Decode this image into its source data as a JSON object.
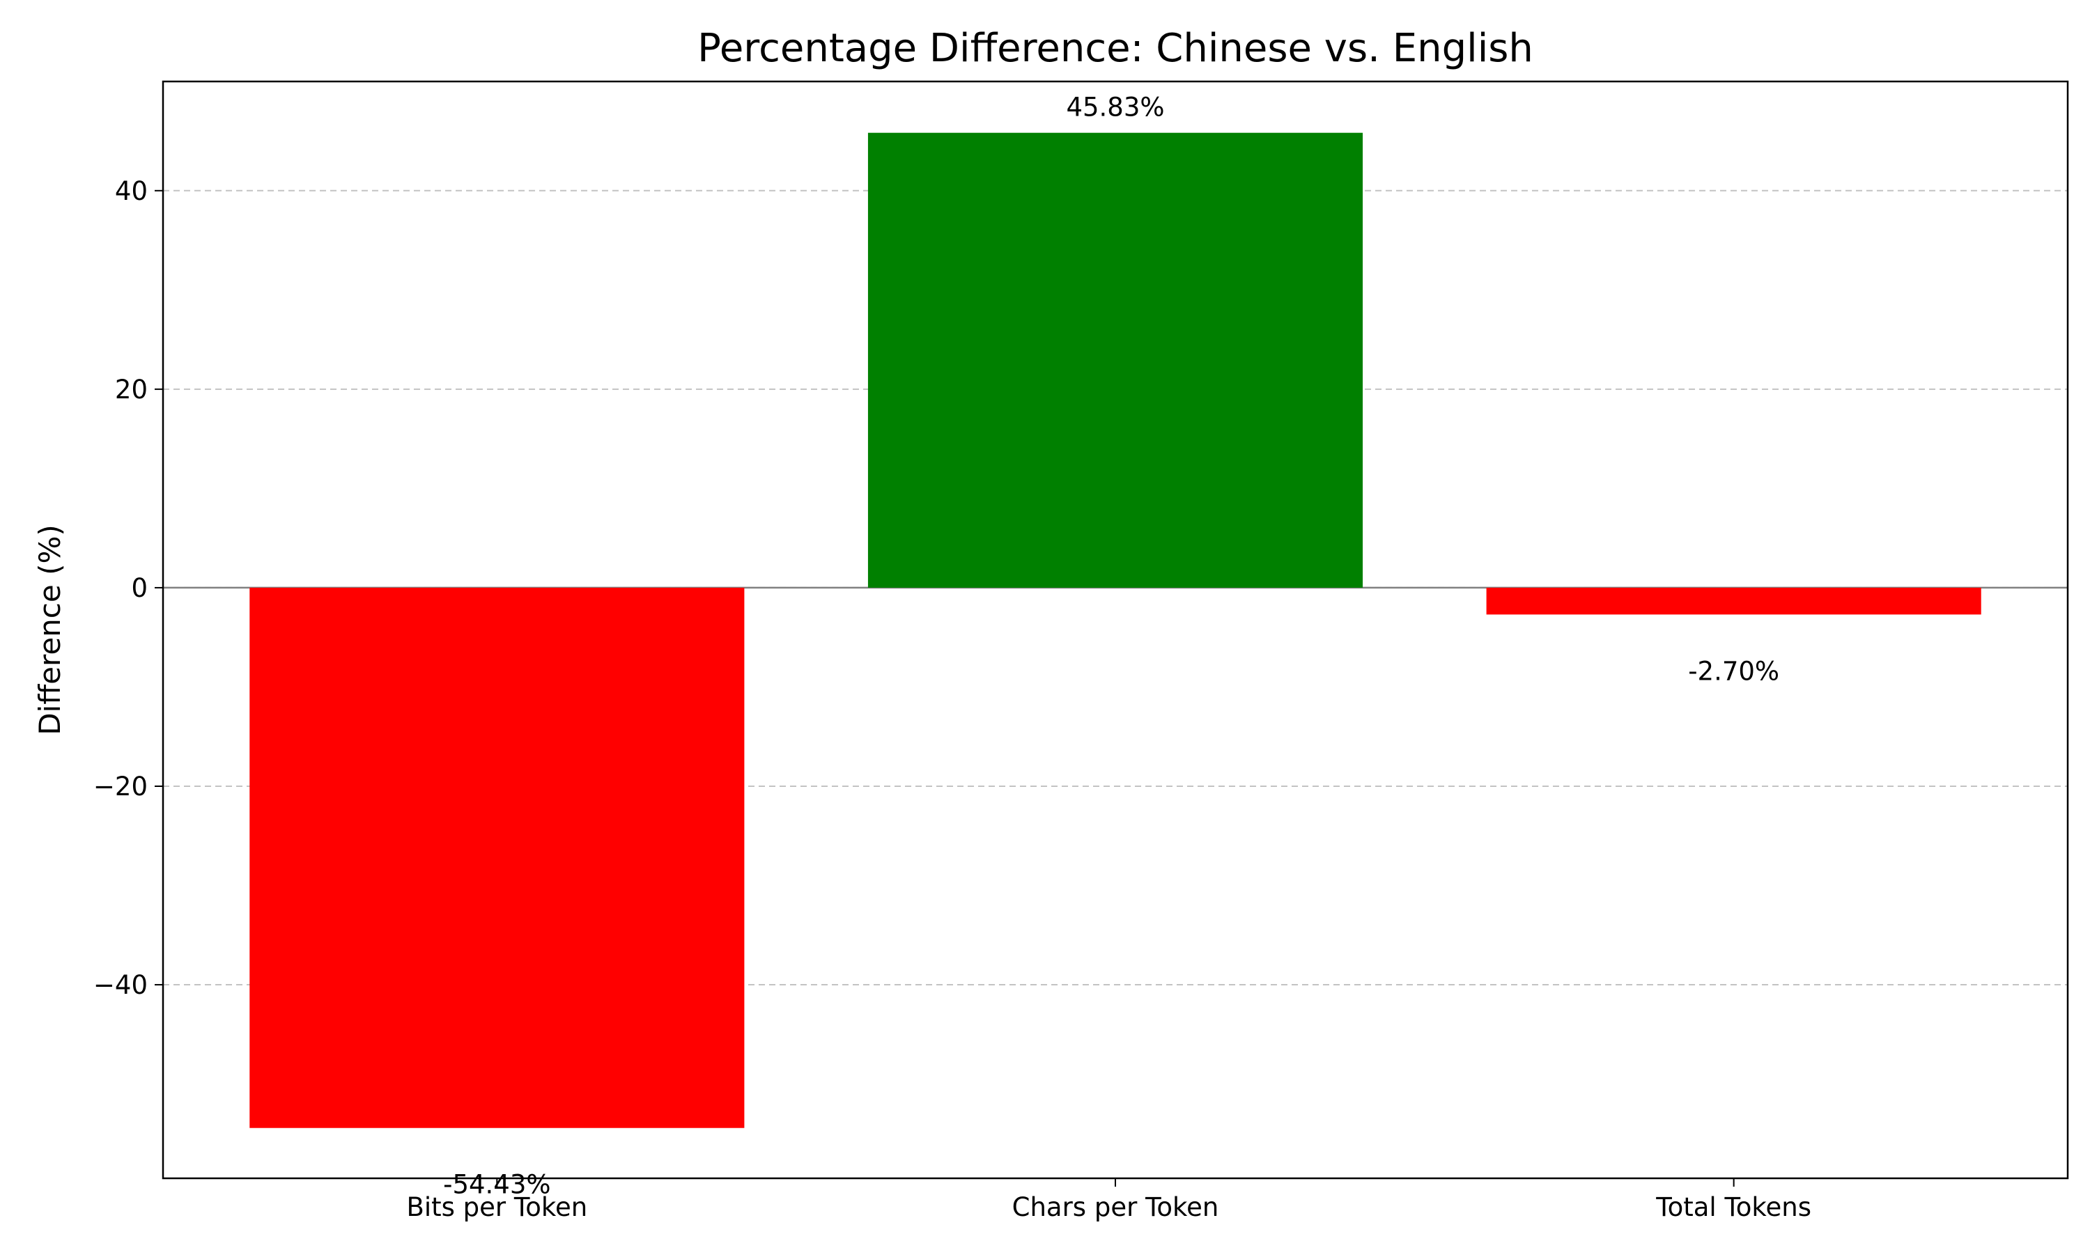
{
  "chart_data": {
    "type": "bar",
    "title": "Percentage Difference: Chinese vs. English",
    "xlabel": "",
    "ylabel": "Difference (%)",
    "categories": [
      "Bits per Token",
      "Chars per Token",
      "Total Tokens"
    ],
    "values": [
      -54.43,
      45.83,
      -2.7
    ],
    "value_labels": [
      "-54.43%",
      "45.83%",
      "-2.70%"
    ],
    "bar_colors": [
      "#ff0000",
      "#008000",
      "#ff0000"
    ],
    "ylim": [
      -59.5,
      51
    ],
    "yticks": [
      -40,
      -20,
      0,
      20,
      40
    ],
    "ytick_labels": [
      "−40",
      "−20",
      "0",
      "20",
      "40"
    ],
    "grid": "y-dashed",
    "zero_line": true,
    "legend": "none"
  }
}
